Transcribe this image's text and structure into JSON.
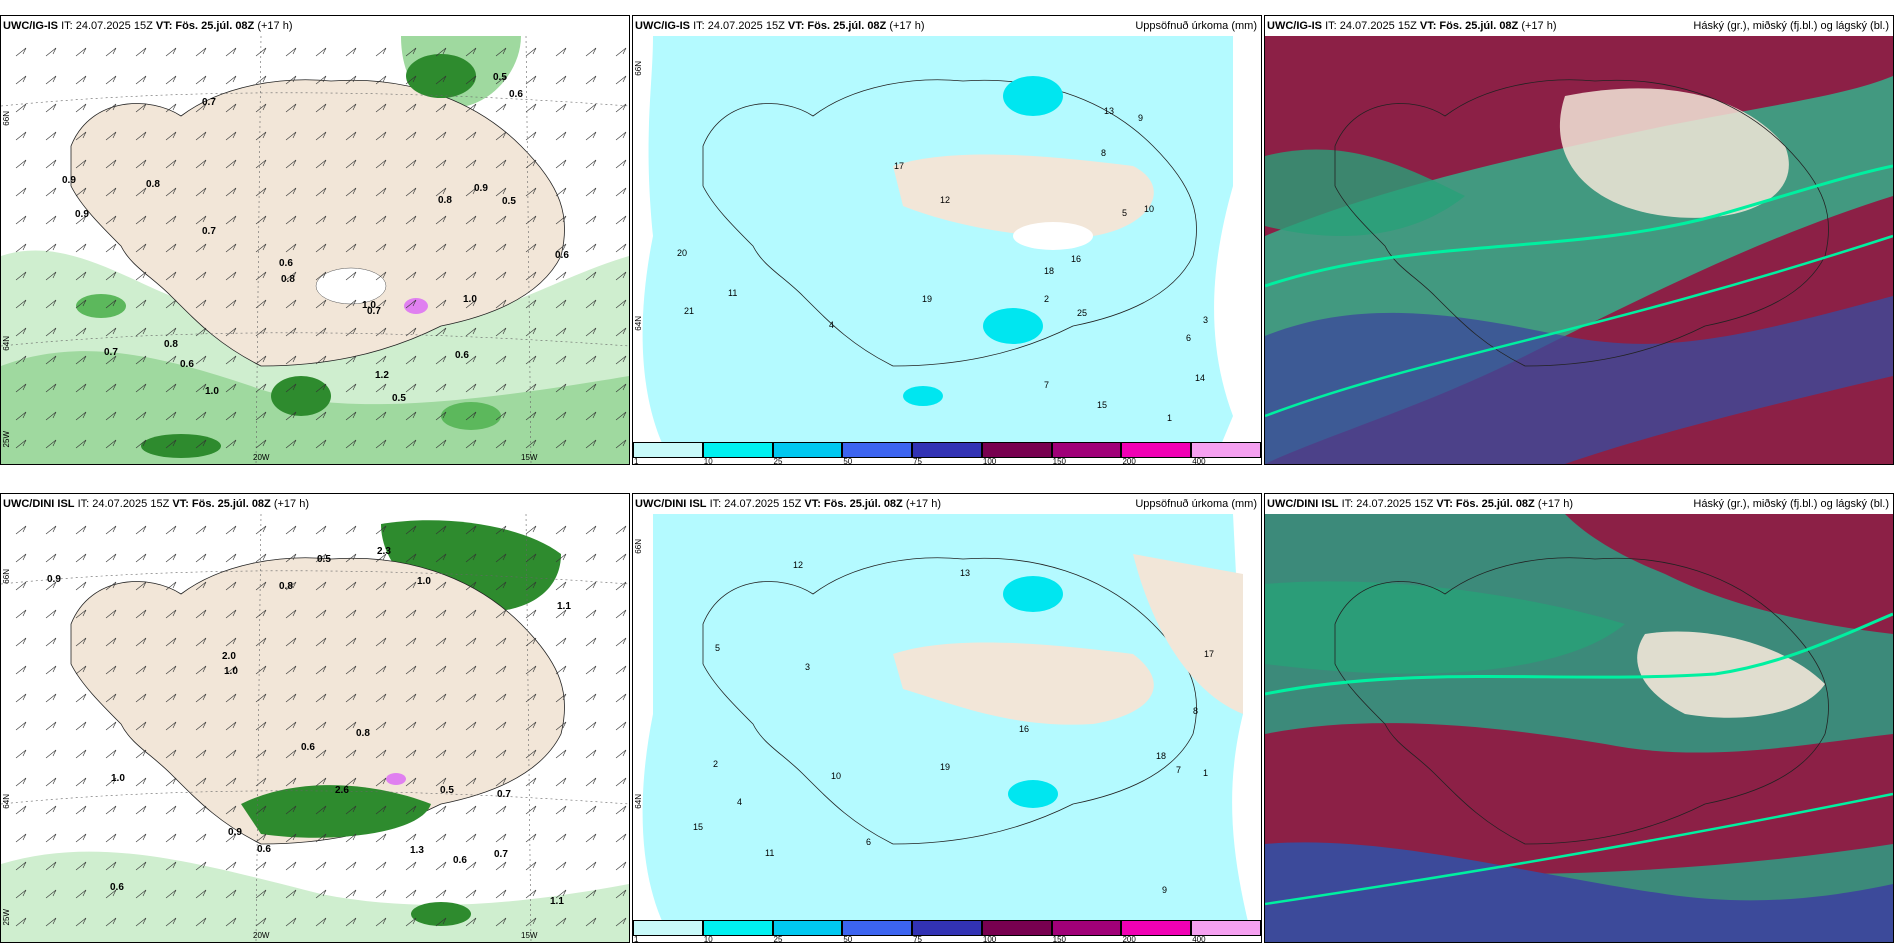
{
  "panels": [
    {
      "model": "UWC/IG-IS",
      "it": "IT: 24.07.2025 15Z",
      "vt": "VT: Fös. 25.júl. 08Z",
      "lead": "(+17 h)",
      "right": ""
    },
    {
      "model": "UWC/IG-IS",
      "it": "IT: 24.07.2025 15Z",
      "vt": "VT: Fös. 25.júl. 08Z",
      "lead": "(+17 h)",
      "right": "Uppsöfnuð úrkoma (mm)"
    },
    {
      "model": "UWC/IG-IS",
      "it": "IT: 24.07.2025 15Z",
      "vt": "VT: Fös. 25.júl. 08Z",
      "lead": "(+17 h)",
      "right": "Háský (gr.), miðský (fj.bl.) og lágský (bl.)"
    },
    {
      "model": "UWC/DINI ISL",
      "it": "IT: 24.07.2025 15Z",
      "vt": "VT: Fös. 25.júl. 08Z",
      "lead": "(+17 h)",
      "right": ""
    },
    {
      "model": "UWC/DINI ISL",
      "it": "IT: 24.07.2025 15Z",
      "vt": "VT: Fös. 25.júl. 08Z",
      "lead": "(+17 h)",
      "right": "Uppsöfnuð úrkoma (mm)"
    },
    {
      "model": "UWC/DINI ISL",
      "it": "IT: 24.07.2025 15Z",
      "vt": "VT: Fös. 25.júl. 08Z",
      "lead": "(+17 h)",
      "right": "Háský (gr.), miðský (fj.bl.) og lágský (bl.)"
    }
  ],
  "axis": {
    "lat66": "66N",
    "lat64": "64N",
    "lon20": "20W",
    "lon15": "15W",
    "lon25": "25W"
  },
  "legend": {
    "ticks": [
      "1",
      "10",
      "25",
      "50",
      "75",
      "100",
      "150",
      "200",
      "400"
    ],
    "colors": [
      "#c8fafa",
      "#00f0f0",
      "#00c8f0",
      "#3c64f0",
      "#3232b4",
      "#780050",
      "#a00078",
      "#f000b4",
      "#f5a0f0"
    ]
  },
  "colors": {
    "land": "#f2e6d8",
    "sea": "#ffffff",
    "precip_light": "#b4faff",
    "precip_mid": "#00e6f0"
  },
  "wind_labels_top": [
    "0.5",
    "0.7",
    "0.8",
    "0.8",
    "0.9",
    "1.2",
    "0.6",
    "0.7",
    "0.8",
    "0.6",
    "0.7",
    "0.9",
    "0.6",
    "1.0",
    "0.8",
    "0.5",
    "0.9",
    "0.6",
    "1.0",
    "0.5",
    "0.6",
    "0.7",
    "1.0"
  ],
  "wind_labels_bottom": [
    "0.6",
    "0.7",
    "0.8",
    "2.6",
    "0.8",
    "2.3",
    "0.7",
    "1.0",
    "0.6",
    "0.9",
    "1.1",
    "1.0",
    "0.6",
    "0.5",
    "1.3",
    "2.0",
    "0.5",
    "1.0",
    "0.6",
    "1.1",
    "0.9"
  ],
  "precip_labels_top": [
    "2",
    "3",
    "5",
    "6",
    "7",
    "8",
    "10",
    "12",
    "14",
    "15",
    "16",
    "18",
    "21",
    "25",
    "4",
    "1",
    "9",
    "11",
    "13",
    "17",
    "19",
    "20"
  ],
  "precip_labels_bottom": [
    "3",
    "4",
    "5",
    "6",
    "7",
    "8",
    "9",
    "10",
    "11",
    "12",
    "13",
    "15",
    "16",
    "17",
    "18",
    "19",
    "1",
    "2"
  ]
}
